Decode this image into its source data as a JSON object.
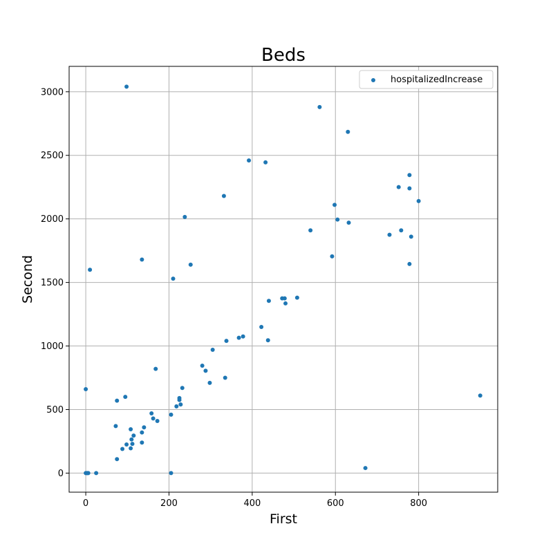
{
  "chart_data": {
    "type": "scatter",
    "title": "Beds",
    "xlabel": "First",
    "ylabel": "Second",
    "xlim": [
      -40,
      990
    ],
    "ylim": [
      -150,
      3200
    ],
    "xticks": [
      0,
      200,
      400,
      600,
      800
    ],
    "yticks": [
      0,
      500,
      1000,
      1500,
      2000,
      2500,
      3000
    ],
    "grid": true,
    "legend_position": "top-right",
    "series": [
      {
        "name": "hospitalizedIncrease",
        "color": "#1f77b4",
        "points": [
          [
            0,
            660
          ],
          [
            10,
            1600
          ],
          [
            0,
            0
          ],
          [
            2,
            0
          ],
          [
            4,
            0
          ],
          [
            6,
            0
          ],
          [
            25,
            0
          ],
          [
            98,
            3040
          ],
          [
            75,
            110
          ],
          [
            72,
            370
          ],
          [
            75,
            570
          ],
          [
            95,
            600
          ],
          [
            88,
            190
          ],
          [
            98,
            225
          ],
          [
            108,
            195
          ],
          [
            110,
            265
          ],
          [
            112,
            230
          ],
          [
            108,
            345
          ],
          [
            115,
            295
          ],
          [
            135,
            240
          ],
          [
            135,
            320
          ],
          [
            140,
            360
          ],
          [
            135,
            1680
          ],
          [
            158,
            470
          ],
          [
            162,
            430
          ],
          [
            172,
            410
          ],
          [
            168,
            820
          ],
          [
            205,
            460
          ],
          [
            205,
            0
          ],
          [
            210,
            1530
          ],
          [
            218,
            525
          ],
          [
            225,
            575
          ],
          [
            225,
            590
          ],
          [
            228,
            540
          ],
          [
            232,
            670
          ],
          [
            238,
            2015
          ],
          [
            252,
            1640
          ],
          [
            280,
            845
          ],
          [
            288,
            805
          ],
          [
            298,
            710
          ],
          [
            305,
            970
          ],
          [
            332,
            2180
          ],
          [
            335,
            750
          ],
          [
            338,
            1040
          ],
          [
            368,
            1065
          ],
          [
            378,
            1075
          ],
          [
            392,
            2460
          ],
          [
            422,
            1150
          ],
          [
            432,
            2445
          ],
          [
            438,
            1045
          ],
          [
            440,
            1355
          ],
          [
            472,
            1375
          ],
          [
            478,
            1375
          ],
          [
            480,
            1335
          ],
          [
            508,
            1380
          ],
          [
            540,
            1910
          ],
          [
            562,
            2880
          ],
          [
            592,
            1705
          ],
          [
            598,
            2110
          ],
          [
            605,
            1995
          ],
          [
            630,
            2685
          ],
          [
            632,
            1970
          ],
          [
            672,
            40
          ],
          [
            730,
            1875
          ],
          [
            752,
            2250
          ],
          [
            758,
            1910
          ],
          [
            778,
            2345
          ],
          [
            778,
            2240
          ],
          [
            778,
            1645
          ],
          [
            782,
            1860
          ],
          [
            800,
            2140
          ],
          [
            948,
            610
          ]
        ]
      }
    ]
  }
}
